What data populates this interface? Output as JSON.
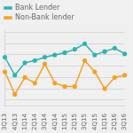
{
  "chart_data": {
    "type": "line",
    "categories": [
      "3Q13",
      "4Q13",
      "1Q14",
      "2Q14",
      "3Q14",
      "4Q14",
      "1Q15",
      "2Q15",
      "3Q15",
      "4Q15",
      "1Q16",
      "2Q16",
      "3Q16"
    ],
    "series": [
      {
        "name": "Bank Lender",
        "color": "#2ab5b0",
        "values": [
          68,
          52,
          63,
          65,
          68,
          70,
          72,
          75,
          80,
          70,
          73,
          76,
          71
        ]
      },
      {
        "name": "Non-Bank lender",
        "color": "#f5a020",
        "values": [
          55,
          35,
          50,
          45,
          62,
          45,
          42,
          42,
          65,
          55,
          40,
          50,
          52
        ]
      }
    ],
    "ylim": [
      25,
      92
    ],
    "yticks": [
      30,
      40,
      50,
      60,
      70,
      80,
      90
    ],
    "grid": true,
    "legend": "upper left",
    "tick_labels": "x",
    "marker": "circle"
  }
}
